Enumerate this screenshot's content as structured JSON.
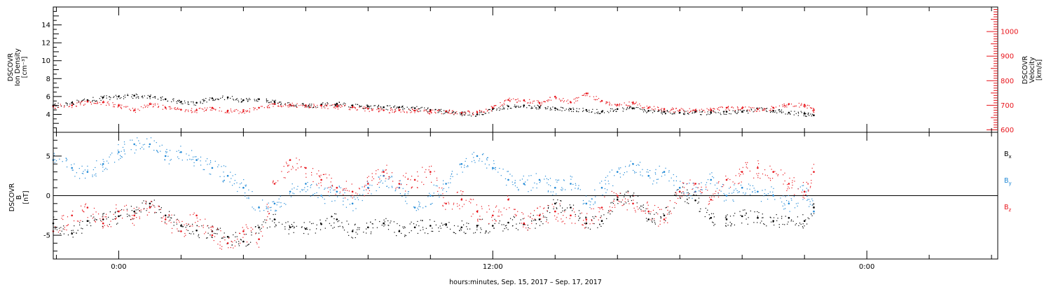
{
  "figure": {
    "xlabel": "hours:minutes, Sep. 15, 2017 – Sep. 17, 2017",
    "x_ticks": [
      "0:00",
      "12:00",
      "0:00"
    ]
  },
  "colors": {
    "black": "#000000",
    "red": "#e8141b",
    "blue": "#1e88d6",
    "axis": "#000000"
  },
  "chart_data": [
    {
      "type": "scatter",
      "name": "top-panel",
      "ylabel_left": [
        "DSCOVR",
        "Ion Density",
        "[cm⁻³]"
      ],
      "ylabel_right": [
        "DSCOVR",
        "Velocity",
        "[km/s]"
      ],
      "x_unit": "hours since Sep. 15 2017 0:00",
      "xlim": [
        -2.1,
        28.2
      ],
      "ylim_left": [
        2,
        16
      ],
      "ylim_right": [
        590,
        1100
      ],
      "left_ticks": [
        4,
        6,
        8,
        10,
        12,
        14
      ],
      "right_ticks": [
        600,
        700,
        800,
        900,
        1000
      ],
      "series": [
        {
          "label": "density",
          "axis": "left",
          "color": "black",
          "x": [
            -2.1,
            -1.5,
            -1.0,
            -0.5,
            0.0,
            0.5,
            1.0,
            1.5,
            2.0,
            2.5,
            3.0,
            3.5,
            4.0,
            4.5,
            5.0,
            5.5,
            6.0,
            6.5,
            7.0,
            7.5,
            8.0,
            8.5,
            9.0,
            9.5,
            10.0,
            10.5,
            11.0,
            11.5,
            12.0,
            12.5,
            13.0,
            13.5,
            14.0,
            14.5,
            15.0,
            15.5,
            16.0,
            16.5,
            17.0,
            17.5,
            18.0,
            18.5,
            19.0,
            19.5,
            20.0,
            20.5,
            21.0,
            21.5,
            22.0,
            22.3
          ],
          "values": [
            5.0,
            5.3,
            5.6,
            5.9,
            6.0,
            6.1,
            6.0,
            5.7,
            5.4,
            5.3,
            5.8,
            5.9,
            5.6,
            5.7,
            5.4,
            5.1,
            5.0,
            5.1,
            5.2,
            5.0,
            4.9,
            4.8,
            4.8,
            4.7,
            4.5,
            4.3,
            4.1,
            4.0,
            4.6,
            4.9,
            5.0,
            4.8,
            4.7,
            4.6,
            4.5,
            4.3,
            4.6,
            4.7,
            4.4,
            4.3,
            4.2,
            4.3,
            4.2,
            4.3,
            4.3,
            4.6,
            4.4,
            4.2,
            4.1,
            3.9
          ]
        },
        {
          "label": "velocity",
          "axis": "right",
          "color": "red",
          "x": [
            -2.1,
            -1.5,
            -1.0,
            -0.5,
            0.0,
            0.5,
            1.0,
            1.5,
            2.0,
            2.5,
            3.0,
            3.5,
            4.0,
            4.5,
            5.0,
            5.5,
            6.0,
            6.5,
            7.0,
            7.5,
            8.0,
            8.5,
            9.0,
            9.5,
            10.0,
            10.5,
            11.0,
            11.5,
            12.0,
            12.5,
            13.0,
            13.5,
            14.0,
            14.5,
            15.0,
            15.5,
            16.0,
            16.5,
            17.0,
            17.5,
            18.0,
            18.5,
            19.0,
            19.5,
            20.0,
            20.5,
            21.0,
            21.5,
            22.0,
            22.3
          ],
          "values": [
            695,
            700,
            715,
            712,
            698,
            680,
            705,
            690,
            682,
            680,
            690,
            678,
            676,
            690,
            705,
            702,
            700,
            698,
            695,
            692,
            686,
            680,
            680,
            678,
            675,
            676,
            670,
            672,
            690,
            722,
            720,
            710,
            735,
            712,
            748,
            718,
            702,
            710,
            690,
            685,
            680,
            680,
            682,
            690,
            688,
            684,
            690,
            705,
            702,
            680
          ]
        }
      ]
    },
    {
      "type": "scatter",
      "name": "bottom-panel",
      "ylabel_left": [
        "DSCOVR",
        "B",
        "[nT]"
      ],
      "x_unit": "hours since Sep. 15 2017 0:00",
      "xlim": [
        -2.1,
        28.2
      ],
      "ylim": [
        -8,
        8
      ],
      "y_ticks": [
        -5,
        0,
        5
      ],
      "series": [
        {
          "label": "Bx",
          "color": "black",
          "x": [
            -2.1,
            -1.5,
            -1.0,
            -0.5,
            0.0,
            0.5,
            1.0,
            1.5,
            2.0,
            2.5,
            3.0,
            3.5,
            4.0,
            4.5,
            5.0,
            5.5,
            6.0,
            6.5,
            7.0,
            7.5,
            8.0,
            8.5,
            9.0,
            9.5,
            10.0,
            10.5,
            11.0,
            11.5,
            12.0,
            12.5,
            13.0,
            13.5,
            14.0,
            14.5,
            15.0,
            15.5,
            16.0,
            16.5,
            17.0,
            17.5,
            18.0,
            18.5,
            19.0,
            19.5,
            20.0,
            20.5,
            21.0,
            21.5,
            22.0,
            22.3
          ],
          "values": [
            -3.5,
            -4.8,
            -3.2,
            -3.0,
            -2.6,
            -2.0,
            -1.0,
            -2.5,
            -3.8,
            -4.4,
            -4.5,
            -5.2,
            -5.8,
            -4.0,
            -3.0,
            -4.0,
            -4.2,
            -3.6,
            -3.0,
            -4.5,
            -4.0,
            -3.5,
            -4.5,
            -4.0,
            -3.8,
            -3.6,
            -4.0,
            -3.8,
            -3.8,
            -3.4,
            -3.6,
            -3.0,
            -1.0,
            -1.5,
            -3.5,
            -3.2,
            -0.5,
            0.0,
            -3.0,
            -2.5,
            0.5,
            -0.6,
            -2.8,
            -3.0,
            -2.6,
            -2.8,
            -3.2,
            -2.8,
            -3.2,
            -1.5
          ]
        },
        {
          "label": "By",
          "color": "blue",
          "x": [
            -2.1,
            -1.5,
            -1.0,
            -0.5,
            0.0,
            0.5,
            1.0,
            1.5,
            2.0,
            2.5,
            3.0,
            3.5,
            4.0,
            4.5,
            5.0,
            5.5,
            6.0,
            6.5,
            7.0,
            7.5,
            8.0,
            8.5,
            9.0,
            9.5,
            10.0,
            10.5,
            11.0,
            11.5,
            12.0,
            12.5,
            13.0,
            13.5,
            14.0,
            14.5,
            15.0,
            15.5,
            16.0,
            16.5,
            17.0,
            17.5,
            18.0,
            18.5,
            19.0,
            19.5,
            20.0,
            20.5,
            21.0,
            21.5,
            22.0,
            22.3
          ],
          "values": [
            4.5,
            3.5,
            3.0,
            4.0,
            5.5,
            6.5,
            6.5,
            5.0,
            5.5,
            4.5,
            3.5,
            2.5,
            1.0,
            -1.5,
            -1.0,
            0.5,
            1.5,
            0.0,
            0.5,
            -1.0,
            1.0,
            2.5,
            1.0,
            -1.5,
            0.0,
            1.5,
            4.0,
            5.0,
            3.5,
            2.0,
            1.5,
            2.0,
            1.0,
            1.5,
            -1.0,
            1.0,
            3.0,
            4.0,
            2.5,
            3.0,
            1.0,
            0.5,
            2.0,
            0.0,
            1.0,
            0.5,
            0.0,
            -1.0,
            0.5,
            -2.0
          ]
        },
        {
          "label": "Bz",
          "color": "red",
          "x": [
            -2.1,
            -1.5,
            -1.0,
            -0.5,
            0.0,
            0.5,
            1.0,
            1.5,
            2.0,
            2.5,
            3.0,
            3.5,
            4.0,
            4.5,
            5.0,
            5.5,
            6.0,
            6.5,
            7.0,
            7.5,
            8.0,
            8.5,
            9.0,
            9.5,
            10.0,
            10.5,
            11.0,
            11.5,
            12.0,
            12.5,
            13.0,
            13.5,
            14.0,
            14.5,
            15.0,
            15.5,
            16.0,
            16.5,
            17.0,
            17.5,
            18.0,
            18.5,
            19.0,
            19.5,
            20.0,
            20.5,
            21.0,
            21.5,
            22.0,
            22.3
          ],
          "values": [
            -4.5,
            -2.5,
            -1.5,
            -3.5,
            -2.0,
            -2.5,
            -1.5,
            -3.0,
            -4.5,
            -2.5,
            -5.0,
            -6.0,
            -4.5,
            -5.5,
            1.5,
            4.5,
            3.5,
            2.0,
            1.0,
            0.5,
            1.5,
            3.0,
            1.5,
            2.0,
            3.0,
            -1.0,
            -0.5,
            -2.0,
            -2.5,
            -0.5,
            -3.5,
            -2.5,
            -2.0,
            -2.5,
            -3.0,
            -1.5,
            0.0,
            -1.0,
            -2.0,
            -3.0,
            0.5,
            1.5,
            -0.5,
            2.0,
            3.0,
            3.5,
            3.0,
            1.5,
            0.5,
            3.0
          ]
        }
      ],
      "legend": [
        {
          "label": "B",
          "sub": "x",
          "color": "black"
        },
        {
          "label": "B",
          "sub": "y",
          "color": "blue"
        },
        {
          "label": "B",
          "sub": "z",
          "color": "red"
        }
      ]
    }
  ]
}
